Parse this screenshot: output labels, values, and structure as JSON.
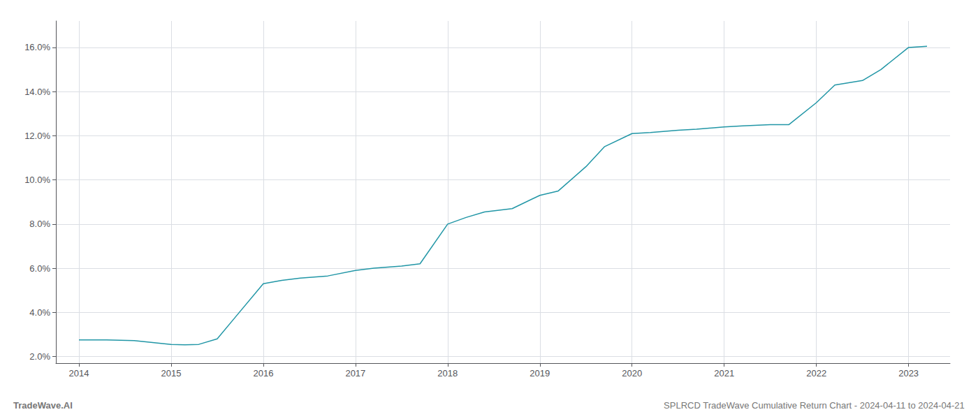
{
  "chart_data": {
    "type": "line",
    "title": "SPLRCD TradeWave Cumulative Return Chart - 2024-04-11 to 2024-04-21",
    "annotations": [
      "TradeWave.AI"
    ],
    "x": [
      2014.0,
      2014.3,
      2014.6,
      2015.0,
      2015.15,
      2015.3,
      2015.5,
      2015.7,
      2016.0,
      2016.2,
      2016.4,
      2016.7,
      2017.0,
      2017.2,
      2017.5,
      2017.7,
      2018.0,
      2018.2,
      2018.4,
      2018.7,
      2019.0,
      2019.2,
      2019.5,
      2019.7,
      2020.0,
      2020.2,
      2020.5,
      2020.7,
      2021.0,
      2021.2,
      2021.5,
      2021.7,
      2022.0,
      2022.2,
      2022.5,
      2022.7,
      2023.0,
      2023.2
    ],
    "values": [
      2.75,
      2.75,
      2.72,
      2.55,
      2.53,
      2.55,
      2.8,
      3.8,
      5.3,
      5.45,
      5.55,
      5.65,
      5.9,
      6.0,
      6.1,
      6.2,
      8.0,
      8.3,
      8.55,
      8.7,
      9.3,
      9.5,
      10.6,
      11.5,
      12.1,
      12.15,
      12.25,
      12.3,
      12.4,
      12.45,
      12.5,
      12.5,
      13.5,
      14.3,
      14.5,
      15.0,
      16.0,
      16.05
    ],
    "color": "#2196a6",
    "xlim": [
      2013.75,
      2023.45
    ],
    "xticks": [
      2014,
      2015,
      2016,
      2017,
      2018,
      2019,
      2020,
      2021,
      2022,
      2023
    ],
    "ylim": [
      1.7,
      17.2
    ],
    "yticks": [
      {
        "value": 2.0,
        "label": "2.0%"
      },
      {
        "value": 4.0,
        "label": "4.0%"
      },
      {
        "value": 6.0,
        "label": "6.0%"
      },
      {
        "value": 8.0,
        "label": "8.0%"
      },
      {
        "value": 10.0,
        "label": "10.0%"
      },
      {
        "value": 12.0,
        "label": "12.0%"
      },
      {
        "value": 14.0,
        "label": "14.0%"
      },
      {
        "value": 16.0,
        "label": "16.0%"
      }
    ],
    "grid": true
  }
}
